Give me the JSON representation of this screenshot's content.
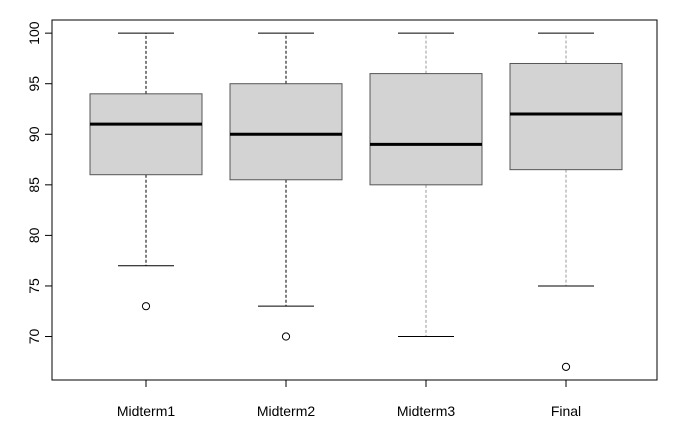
{
  "chart_data": {
    "type": "boxplot",
    "categories": [
      "Midterm1",
      "Midterm2",
      "Midterm3",
      "Final"
    ],
    "boxes": [
      {
        "category": "Midterm1",
        "whisker_low": 77,
        "q1": 86,
        "median": 91,
        "q3": 94,
        "whisker_high": 100,
        "outliers": [
          73
        ]
      },
      {
        "category": "Midterm2",
        "whisker_low": 73,
        "q1": 85.5,
        "median": 90,
        "q3": 95,
        "whisker_high": 100,
        "outliers": [
          70
        ]
      },
      {
        "category": "Midterm3",
        "whisker_low": 70,
        "q1": 85,
        "median": 89,
        "q3": 96,
        "whisker_high": 100,
        "outliers": []
      },
      {
        "category": "Final",
        "whisker_low": 75,
        "q1": 86.5,
        "median": 92,
        "q3": 97,
        "whisker_high": 100,
        "outliers": [
          67
        ]
      }
    ],
    "y_ticks": [
      70,
      75,
      80,
      85,
      90,
      95,
      100
    ],
    "ylim": [
      65.7,
      101.3
    ],
    "title": "",
    "xlabel": "",
    "ylabel": "",
    "grid": false,
    "colors": {
      "box_fill": "#d3d3d3",
      "box_stroke": "#555555",
      "median": "#000000",
      "whisker": "#000000",
      "axis": "#000000"
    }
  }
}
